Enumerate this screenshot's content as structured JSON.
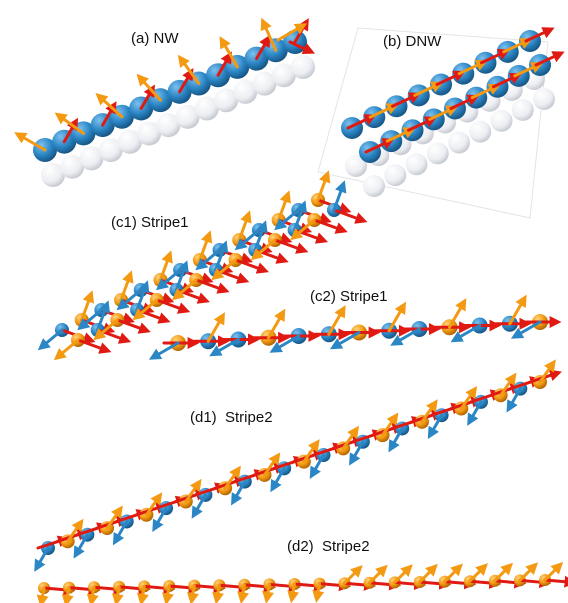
{
  "panels": {
    "a": {
      "label": "(a) NW"
    },
    "b": {
      "label": "(b) DNW"
    },
    "c1": {
      "label": "(c1) Stripe1"
    },
    "c2": {
      "label": "(c2) Stripe1"
    },
    "d1": {
      "label": "(d1)  Stripe2"
    },
    "d2": {
      "label": "(d2)  Stripe2"
    }
  },
  "colors": {
    "blue_atom": "#2b86c5",
    "orange_atom": "#f39a12",
    "white_atom": "#eceef2",
    "red_arrow": "#e01a12",
    "orange_arrow": "#f39a12",
    "blue_arrow": "#2b86c5"
  }
}
